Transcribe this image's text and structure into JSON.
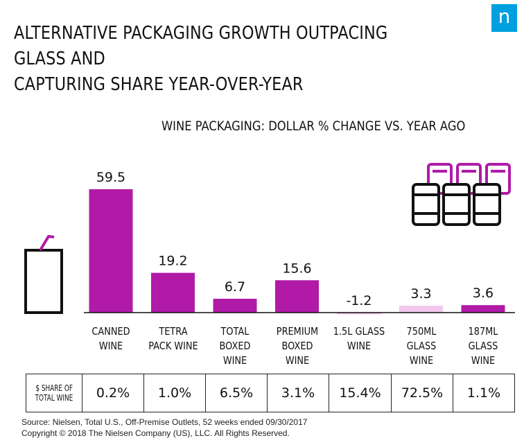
{
  "header": {
    "title_line1": "ALTERNATIVE PACKAGING GROWTH OUTPACING GLASS AND",
    "title_line2": "CAPTURING SHARE YEAR-OVER-YEAR",
    "logo_letter": "n"
  },
  "chart_data": {
    "type": "bar",
    "title": "WINE PACKAGING: DOLLAR % CHANGE VS. YEAR AGO",
    "categories": [
      [
        "CANNED",
        "WINE"
      ],
      [
        "TETRA",
        "PACK WINE"
      ],
      [
        "TOTAL BOXED",
        "WINE"
      ],
      [
        "PREMIUM",
        "BOXED WINE"
      ],
      [
        "1.5L GLASS",
        "WINE"
      ],
      [
        "750ML",
        "GLASS WINE"
      ],
      [
        "187ML",
        "GLASS WINE"
      ]
    ],
    "values": [
      59.5,
      19.2,
      6.7,
      15.6,
      -1.2,
      3.3,
      3.6
    ],
    "value_labels": [
      "59.5",
      "19.2",
      "6.7",
      "15.6",
      "-1.2",
      "3.3",
      "3.6"
    ],
    "bar_colors": [
      "#b01aa7",
      "#b01aa7",
      "#b01aa7",
      "#b01aa7",
      "#f1c8ec",
      "#f1c8ec",
      "#b01aa7"
    ],
    "xlabel": "",
    "ylabel": "",
    "ylim": [
      -2,
      60
    ],
    "grid": false
  },
  "share_row": {
    "header_line1": "$ SHARE OF",
    "header_line2": "TOTAL WINE",
    "values": [
      "0.2%",
      "1.0%",
      "6.5%",
      "3.1%",
      "15.4%",
      "72.5%",
      "1.1%"
    ]
  },
  "footer": {
    "source": "Source: Nielsen, Total U.S., Off-Premise Outlets, 52 weeks ended 09/30/2017",
    "copyright": "Copyright © 2018 The Nielsen Company (US), LLC. All Rights Reserved."
  },
  "colors": {
    "accent": "#b01aa7",
    "light_accent": "#f1c8ec",
    "logo_bg": "#009fdf"
  }
}
